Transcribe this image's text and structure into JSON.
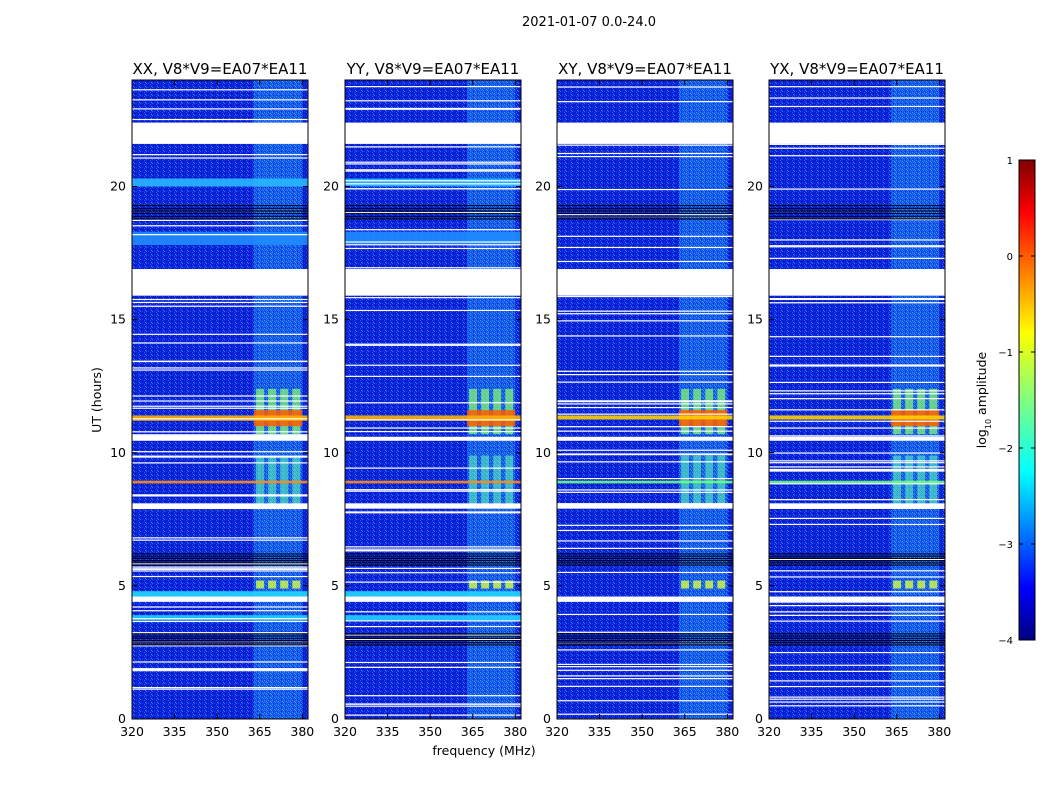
{
  "chart_data": {
    "type": "heatmap",
    "suptitle": "2021-01-07 0.0-24.0",
    "xlabel": "frequency (MHz)",
    "ylabel": "UT (hours)",
    "xlim": [
      320,
      382
    ],
    "ylim": [
      0,
      24
    ],
    "xticks": [
      320,
      335,
      350,
      365,
      380
    ],
    "yticks": [
      0,
      5,
      10,
      15,
      20
    ],
    "panels": [
      {
        "title": "XX, V8*V9=EA07*EA11",
        "polarization": "XX"
      },
      {
        "title": "YY, V8*V9=EA07*EA11",
        "polarization": "YY"
      },
      {
        "title": "XY, V8*V9=EA07*EA11",
        "polarization": "XY"
      },
      {
        "title": "YX, V8*V9=EA07*EA11",
        "polarization": "YX"
      }
    ],
    "colorbar": {
      "label": "log10 amplitude",
      "label_base": "log",
      "label_sub": "10",
      "label_rest": " amplitude",
      "min": -4,
      "max": 1,
      "ticks": [
        1,
        0,
        -1,
        -2,
        -3,
        -4
      ],
      "tick_labels": [
        "1",
        "0",
        "−1",
        "−2",
        "−3",
        "−4"
      ],
      "colormap": "jet"
    },
    "blank_time_ranges_hours": [
      [
        21.6,
        22.4
      ],
      [
        15.9,
        16.9
      ],
      [
        10.45,
        10.6
      ],
      [
        4.4,
        4.6
      ],
      [
        7.9,
        8.1
      ]
    ],
    "rfi_band_mhz": [
      363,
      380
    ],
    "rfi_peak_time_hours": [
      11.0,
      11.6
    ],
    "colors": {
      "background": "#ffffff",
      "text": "#000000",
      "low": "#0a1fd6",
      "mid": "#14b4ff",
      "high": "#ff3c00",
      "gap": "#ffffff"
    }
  }
}
